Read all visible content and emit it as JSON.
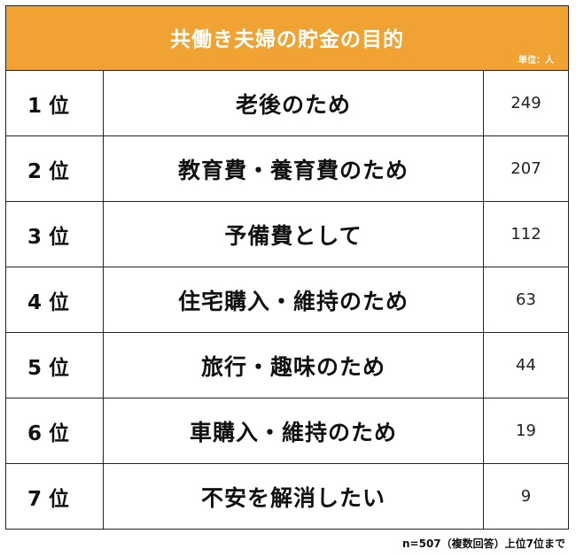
{
  "chart_data": {
    "type": "table",
    "title": "共働き夫婦の貯金の目的",
    "unit": "単位：人",
    "rows": [
      {
        "rank": "1 位",
        "label": "老後のため",
        "value": 249
      },
      {
        "rank": "2 位",
        "label": "教育費・養育費のため",
        "value": 207
      },
      {
        "rank": "3 位",
        "label": "予備費として",
        "value": 112
      },
      {
        "rank": "4 位",
        "label": "住宅購入・維持のため",
        "value": 63
      },
      {
        "rank": "5 位",
        "label": "旅行・趣味のため",
        "value": 44
      },
      {
        "rank": "6 位",
        "label": "車購入・維持のため",
        "value": 19
      },
      {
        "rank": "7 位",
        "label": "不安を解消したい",
        "value": 9
      }
    ],
    "note": "n=507（複数回答）上位7位まで"
  },
  "colors": {
    "header_bg": "#f0a332",
    "header_text": "#ffffff",
    "border": "#222222"
  }
}
